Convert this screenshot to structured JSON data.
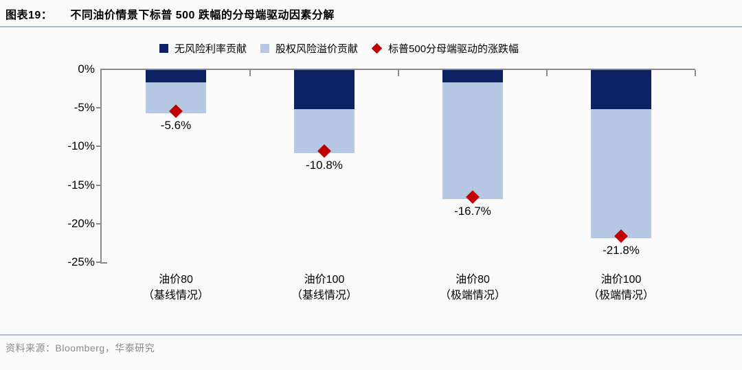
{
  "header": {
    "tag": "图表19：",
    "title": "不同油价情景下标普 500 跌幅的分母端驱动因素分解"
  },
  "legend": [
    {
      "label": "无风险利率贡献",
      "swatch": "square",
      "color": "#0e2263"
    },
    {
      "label": "股权风险溢价贡献",
      "swatch": "square",
      "color": "#b6c7e3"
    },
    {
      "label": "标普500分母端驱动的涨跌幅",
      "swatch": "diamond",
      "color": "#c00000"
    }
  ],
  "chart_data": {
    "type": "bar",
    "stacked": true,
    "categories": [
      "油价80\n（基线情况）",
      "油价100\n（基线情况）",
      "油价80\n（极端情况）",
      "油价100\n（极端情况）"
    ],
    "series": [
      {
        "name": "无风险利率贡献",
        "color": "#0e2263",
        "values": [
          -1.6,
          -5.1,
          -1.6,
          -5.1
        ]
      },
      {
        "name": "股权风险溢价贡献",
        "color": "#b6c7e3",
        "values": [
          -4.0,
          -5.7,
          -15.1,
          -16.7
        ]
      }
    ],
    "totals": {
      "name": "标普500分母端驱动的涨跌幅",
      "marker": "diamond",
      "color": "#c00000",
      "values": [
        -5.6,
        -10.8,
        -16.7,
        -21.8
      ],
      "labels": [
        "-5.6%",
        "-10.8%",
        "-16.7%",
        "-21.8%"
      ]
    },
    "ylim": [
      -25,
      0
    ],
    "yticks": [
      "0%",
      "-5%",
      "-10%",
      "-15%",
      "-20%",
      "-25%"
    ],
    "grid": false,
    "legend_position": "top",
    "axis_color": "#8a8a8a"
  },
  "footer": {
    "source_label": "资料来源：",
    "source_text": "Bloomberg，华泰研究"
  }
}
